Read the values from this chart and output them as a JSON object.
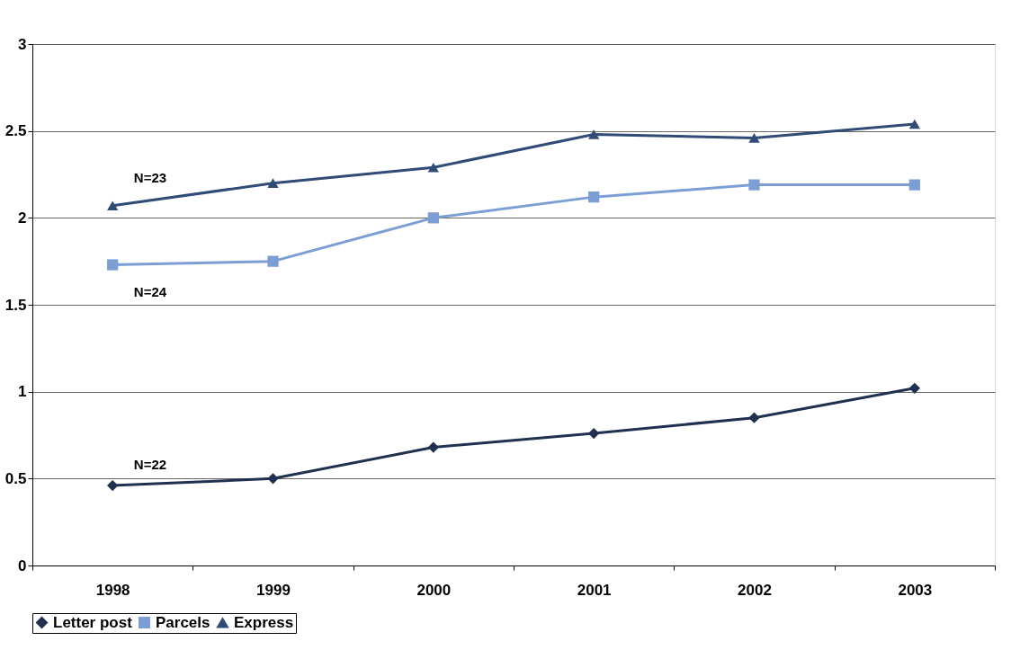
{
  "chart_data": {
    "type": "line",
    "categories": [
      "1998",
      "1999",
      "2000",
      "2001",
      "2002",
      "2003"
    ],
    "series": [
      {
        "name": "Letter post",
        "color": "#1f3050",
        "marker": "diamond",
        "values": [
          0.46,
          0.5,
          0.68,
          0.76,
          0.85,
          1.02
        ]
      },
      {
        "name": "Parcels",
        "color": "#7b9fd4",
        "marker": "square",
        "values": [
          1.73,
          1.75,
          2.0,
          2.12,
          2.19,
          2.19
        ]
      },
      {
        "name": "Express",
        "color": "#2f4b76",
        "marker": "triangle",
        "values": [
          2.07,
          2.2,
          2.29,
          2.48,
          2.46,
          2.54
        ]
      }
    ],
    "ylim": [
      0,
      3
    ],
    "yticks": [
      0,
      0.5,
      1,
      1.5,
      2,
      2.5,
      3
    ],
    "grid": "y",
    "legend": "bottom",
    "line_style": "solid",
    "annotations": [
      "N=23",
      "N=24",
      "N=22"
    ]
  }
}
